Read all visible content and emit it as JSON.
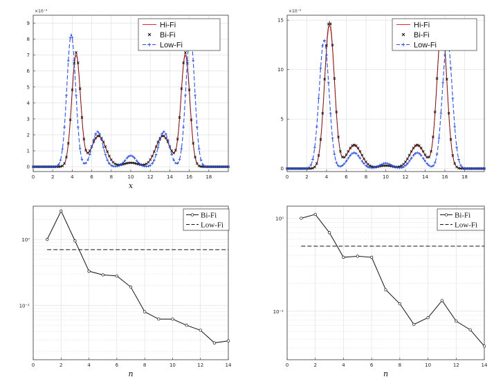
{
  "figure": {
    "description_free": true
  },
  "chart_data": [
    {
      "type": "line",
      "panel": "top-left",
      "xlabel": "x",
      "ylabel": "",
      "xlim": [
        0,
        20
      ],
      "ylim": [
        -0.3,
        9.5
      ],
      "y_multiplier": "×10⁻³",
      "xticks": [
        0,
        2,
        4,
        6,
        8,
        10,
        12,
        14,
        16,
        18
      ],
      "yticks": [
        0,
        1,
        2,
        3,
        4,
        5,
        6,
        7,
        8,
        9
      ],
      "grid": true,
      "legend_position": "top-right",
      "curves": [
        {
          "name": "Hi-Fi",
          "color": "#e8262b",
          "dash": "",
          "marker": "none",
          "gaussians": [
            [
              4.4,
              0.45,
              7.0
            ],
            [
              6.7,
              0.75,
              1.9
            ],
            [
              10.0,
              0.8,
              0.25
            ],
            [
              13.3,
              0.75,
              1.9
            ],
            [
              15.6,
              0.45,
              7.0
            ]
          ]
        },
        {
          "name": "Bi-Fi",
          "color": "#111111",
          "dash": "",
          "marker": "x",
          "gaussians": [
            [
              4.4,
              0.45,
              7.15
            ],
            [
              6.7,
              0.75,
              1.95
            ],
            [
              10.0,
              0.8,
              0.25
            ],
            [
              13.3,
              0.75,
              1.95
            ],
            [
              15.6,
              0.45,
              7.15
            ]
          ]
        },
        {
          "name": "Low-Fi",
          "color": "#2a4fe0",
          "dash": "6 3",
          "marker": "+",
          "gaussians": [
            [
              3.9,
              0.45,
              8.3
            ],
            [
              6.6,
              0.55,
              2.2
            ],
            [
              10.0,
              0.55,
              0.7
            ],
            [
              13.4,
              0.55,
              2.2
            ],
            [
              16.1,
              0.45,
              8.3
            ]
          ]
        }
      ]
    },
    {
      "type": "line",
      "panel": "top-right",
      "xlabel": "",
      "ylabel": "",
      "xlim": [
        0,
        20
      ],
      "ylim": [
        -0.3,
        15.5
      ],
      "y_multiplier": "×10⁻³",
      "xticks": [
        0,
        2,
        4,
        6,
        8,
        10,
        12,
        14,
        16,
        18
      ],
      "yticks": [
        0,
        5,
        10,
        15
      ],
      "grid": true,
      "legend_position": "top-right",
      "curves": [
        {
          "name": "Hi-Fi",
          "color": "#e8262b",
          "dash": "",
          "marker": "none",
          "gaussians": [
            [
              4.3,
              0.5,
              14.5
            ],
            [
              6.8,
              0.75,
              2.3
            ],
            [
              10.0,
              0.8,
              0.3
            ],
            [
              13.2,
              0.75,
              2.3
            ],
            [
              15.7,
              0.5,
              14.5
            ]
          ]
        },
        {
          "name": "Bi-Fi",
          "color": "#111111",
          "dash": "",
          "marker": "x",
          "gaussians": [
            [
              4.3,
              0.5,
              14.9
            ],
            [
              6.8,
              0.75,
              2.4
            ],
            [
              10.0,
              0.8,
              0.3
            ],
            [
              13.2,
              0.75,
              2.4
            ],
            [
              15.7,
              0.5,
              14.9
            ]
          ]
        },
        {
          "name": "Low-Fi",
          "color": "#2a4fe0",
          "dash": "6 3",
          "marker": "+",
          "gaussians": [
            [
              3.75,
              0.5,
              13.0
            ],
            [
              6.8,
              0.65,
              1.6
            ],
            [
              10.0,
              0.6,
              0.55
            ],
            [
              13.2,
              0.65,
              1.6
            ],
            [
              16.25,
              0.5,
              13.0
            ]
          ]
        }
      ]
    },
    {
      "type": "line",
      "panel": "bottom-left",
      "scale": "log",
      "xlabel": "n",
      "ylabel": "",
      "xlim": [
        0,
        14
      ],
      "ylim": [
        0.015,
        3.2
      ],
      "xticks": [
        0,
        2,
        4,
        6,
        8,
        10,
        12,
        14
      ],
      "ytick_labels": [
        "10⁰",
        "10⁻¹"
      ],
      "ytick_values": [
        1,
        0.1
      ],
      "grid": true,
      "legend_position": "top-right",
      "series": [
        {
          "name": "Bi-Fi",
          "color": "#111111",
          "style": "solid-circle",
          "x": [
            1,
            2,
            3,
            4,
            5,
            6,
            7,
            8,
            9,
            10,
            11,
            12,
            13,
            14
          ],
          "y": [
            1.0,
            2.7,
            0.95,
            0.33,
            0.29,
            0.28,
            0.19,
            0.08,
            0.062,
            0.062,
            0.05,
            0.042,
            0.027,
            0.029
          ]
        },
        {
          "name": "Low-Fi",
          "color": "#111111",
          "style": "dashed",
          "x": [
            1,
            14
          ],
          "y": [
            0.7,
            0.7
          ]
        }
      ]
    },
    {
      "type": "line",
      "panel": "bottom-right",
      "scale": "log",
      "xlabel": "n",
      "ylabel": "",
      "xlim": [
        0,
        14
      ],
      "ylim": [
        0.03,
        1.35
      ],
      "xticks": [
        0,
        2,
        4,
        6,
        8,
        10,
        12,
        14
      ],
      "ytick_labels": [
        "10⁰",
        "10⁻¹"
      ],
      "ytick_values": [
        1,
        0.1
      ],
      "grid": true,
      "legend_position": "top-right",
      "series": [
        {
          "name": "Bi-Fi",
          "color": "#111111",
          "style": "solid-circle",
          "x": [
            1,
            2,
            3,
            4,
            5,
            6,
            7,
            8,
            9,
            10,
            11,
            12,
            13,
            14
          ],
          "y": [
            1.0,
            1.1,
            0.7,
            0.38,
            0.39,
            0.38,
            0.17,
            0.12,
            0.072,
            0.085,
            0.13,
            0.078,
            0.063,
            0.042
          ]
        },
        {
          "name": "Low-Fi",
          "color": "#111111",
          "style": "dashed",
          "x": [
            1,
            14
          ],
          "y": [
            0.5,
            0.5
          ]
        }
      ]
    }
  ]
}
